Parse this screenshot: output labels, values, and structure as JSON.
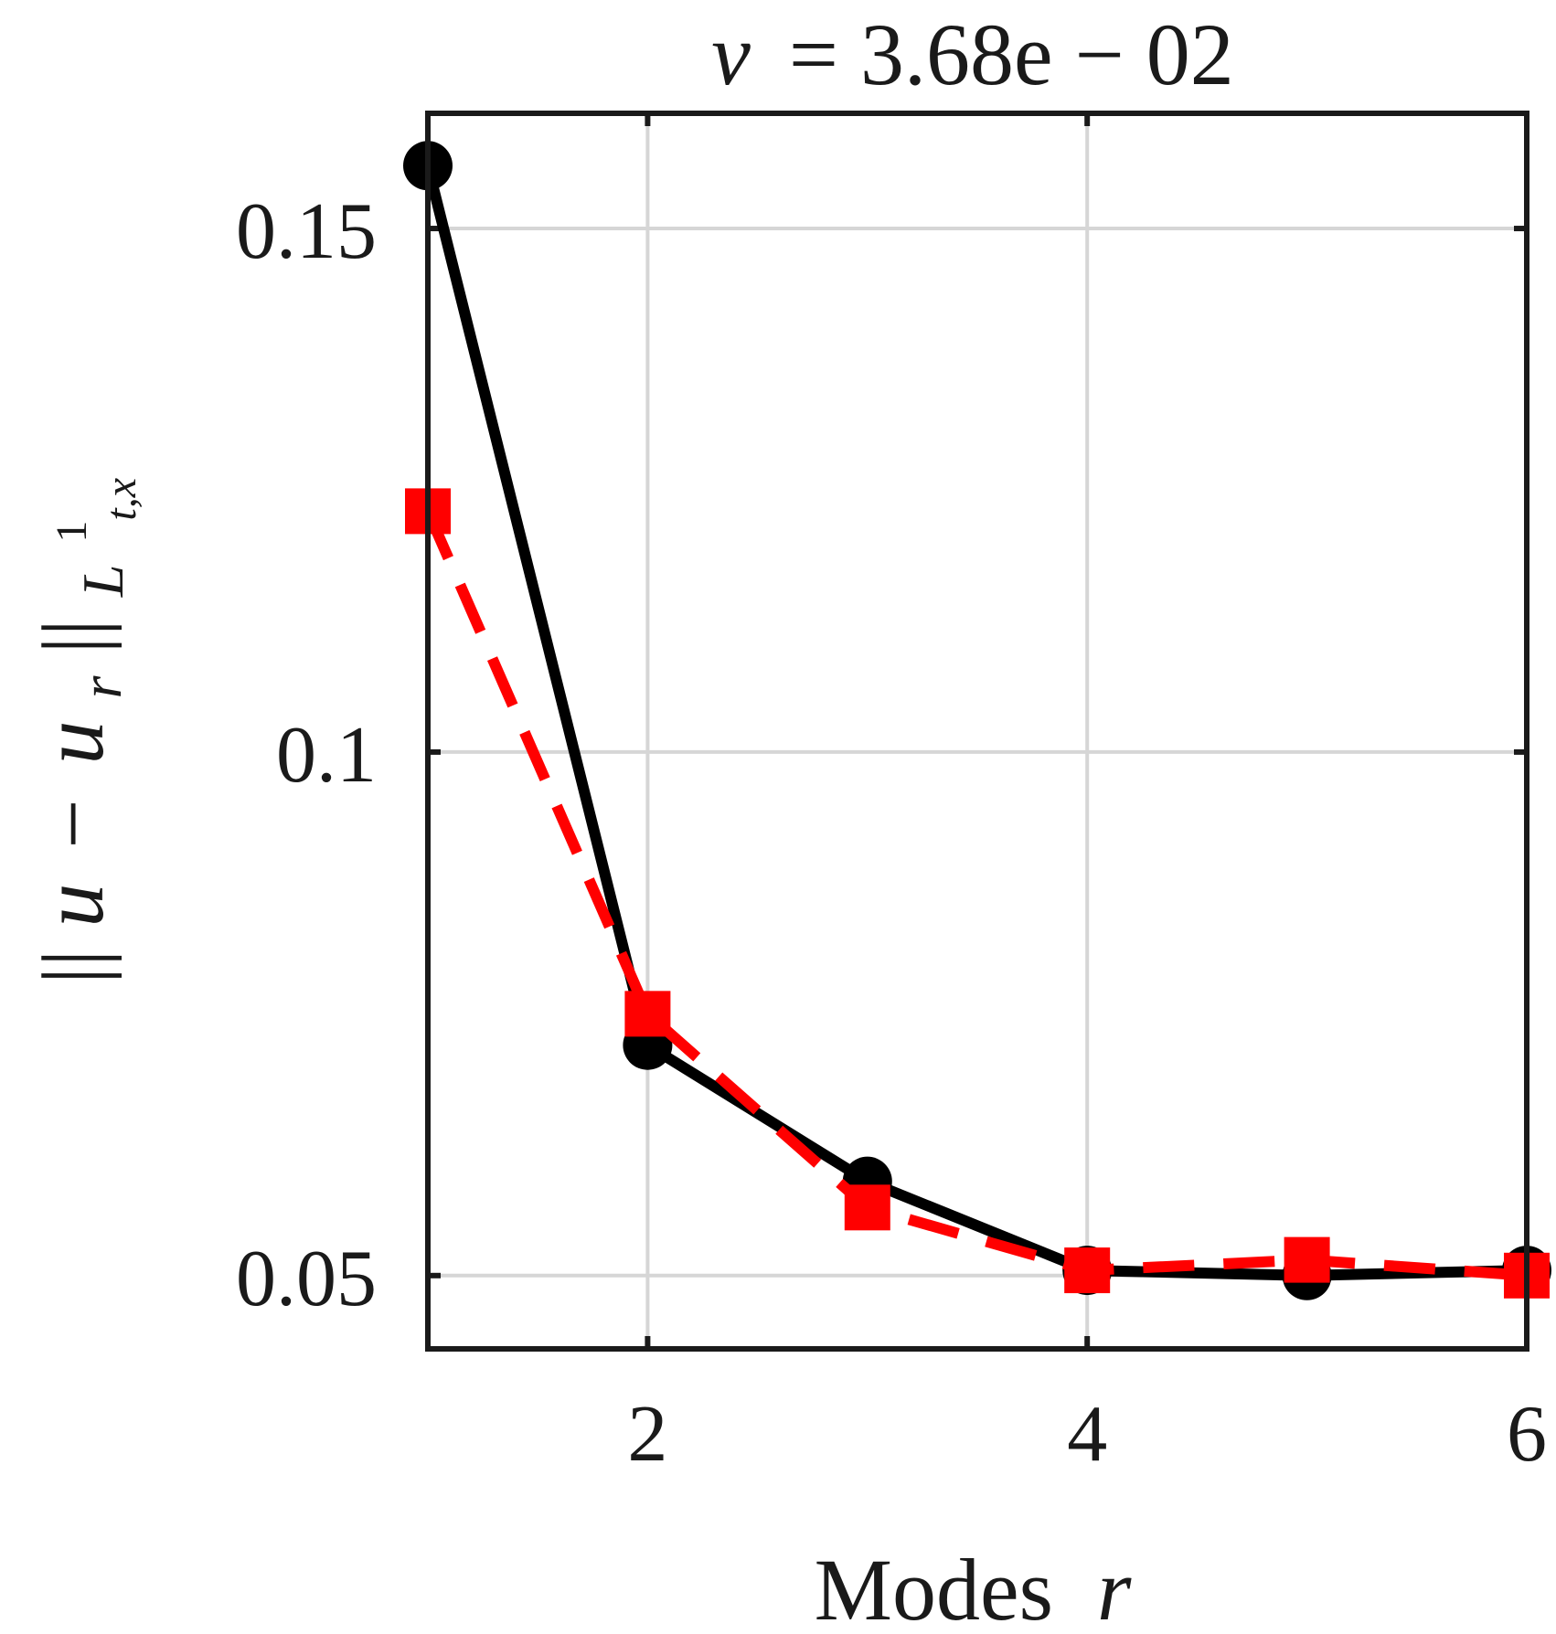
{
  "chart_data": {
    "type": "line",
    "title_symbol": "ν",
    "title_value": "= 3.68e − 02",
    "xlabel": "Modes",
    "xlabel_var": "r",
    "ylabel": "||u − u_r||_{L^1_{t,x}}",
    "ylabel_norm_open": "||",
    "ylabel_u": "u",
    "ylabel_minus": "−",
    "ylabel_ur": "u",
    "ylabel_r_sub": "r",
    "ylabel_norm_close": "||",
    "ylabel_L": "L",
    "ylabel_sup": "1",
    "ylabel_sub": "t,x",
    "xlim": [
      1,
      6
    ],
    "ylim": [
      0.043,
      0.161
    ],
    "xticks": [
      2,
      4,
      6
    ],
    "xtick_labels": [
      "2",
      "4",
      "6"
    ],
    "yticks": [
      0.05,
      0.1,
      0.15
    ],
    "ytick_labels": [
      "0.05",
      "0.1",
      "0.15"
    ],
    "grid": true,
    "series": [
      {
        "name": "series-black-circles",
        "color": "#000000",
        "line_style": "solid",
        "marker": "circle",
        "x": [
          1,
          2,
          3,
          4,
          5,
          6
        ],
        "values": [
          0.156,
          0.072,
          0.059,
          0.0505,
          0.05,
          0.0505
        ]
      },
      {
        "name": "series-red-squares",
        "color": "#ff0000",
        "line_style": "dashed",
        "marker": "square",
        "x": [
          1,
          2,
          3,
          4,
          5,
          6
        ],
        "values": [
          0.123,
          0.075,
          0.0565,
          0.0505,
          0.0515,
          0.05
        ]
      }
    ]
  }
}
